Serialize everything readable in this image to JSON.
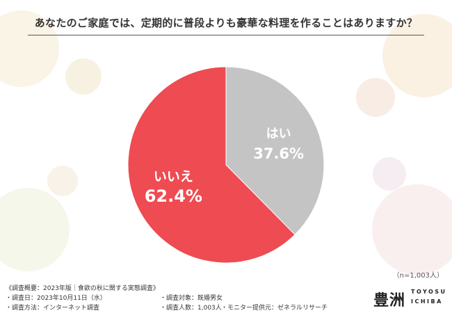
{
  "title": "あなたのご家庭では、定期的に普段よりも豪華な料理を作ることはありますか？",
  "sample_size": "（n=1,003人）",
  "footer": {
    "survey_overview": "《調査概要：2023年版｜食欲の秋に関する実態調査》",
    "survey_date": "・調査日：2023年10月11日（水）",
    "survey_method": "・調査方法：インターネット調査",
    "survey_target": "・調査対象：既婚男女",
    "survey_count": "・調査人数：1,003人",
    "monitor_provider": "・モニター提供元：ゼネラルリサーチ"
  },
  "logo": {
    "kanji": "豊洲",
    "line1": "TOYOSU",
    "line2": "ICHIBA"
  },
  "colors": {
    "yes": "#c4c4c4",
    "no": "#ee4b52",
    "title_text": "#333333"
  },
  "chart_data": {
    "type": "pie",
    "title": "あなたのご家庭では、定期的に普段よりも豪華な料理を作ることはありますか？",
    "categories": [
      "はい",
      "いいえ"
    ],
    "values": [
      37.6,
      62.4
    ],
    "value_labels": [
      "37.6%",
      "62.4%"
    ],
    "start_angle": "12 o'clock, clockwise",
    "legend": "none (labels inside slices)"
  }
}
